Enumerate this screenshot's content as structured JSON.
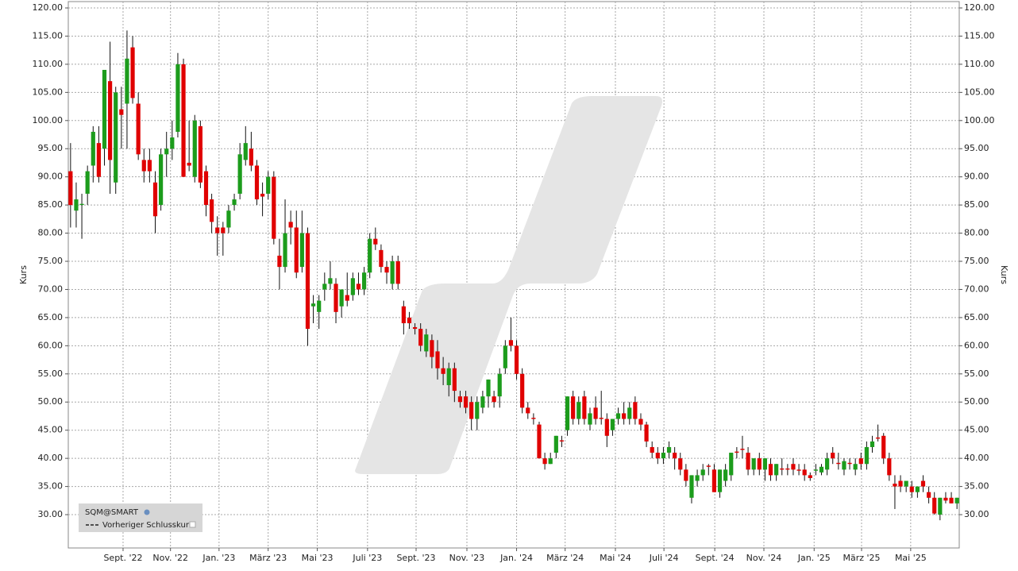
{
  "chart_data": {
    "type": "candlestick",
    "series": [
      {
        "name": "SQM@SMART",
        "up_color": "#1c9c1c",
        "down_color": "#e00000",
        "open": [
          91,
          84,
          85,
          87,
          92,
          96,
          95,
          107,
          89,
          102,
          103,
          113,
          103,
          93,
          93,
          89,
          85,
          94,
          95,
          98,
          110,
          92.5,
          90,
          99,
          91,
          86,
          81,
          81,
          81,
          85,
          87,
          93,
          95,
          92,
          87,
          87,
          90,
          76,
          74,
          82,
          81,
          74,
          80,
          67,
          66,
          70,
          71,
          71,
          67,
          69,
          69,
          71,
          70,
          73,
          79,
          77,
          74,
          71,
          75,
          67,
          65,
          63.3,
          63,
          59,
          61,
          59,
          56,
          53,
          56,
          51,
          51,
          50,
          47,
          49,
          51,
          51,
          51,
          56,
          61,
          60,
          55,
          49,
          47.2,
          46,
          40,
          39,
          41,
          43.2,
          45,
          51,
          47,
          51,
          46,
          49,
          47.2,
          47,
          45,
          47,
          48,
          47,
          50,
          47,
          46,
          42,
          41,
          40,
          41,
          41,
          40,
          38,
          33,
          36,
          37,
          38.7,
          38,
          34,
          36,
          37,
          41.2,
          41.7,
          41,
          38,
          40,
          38,
          39,
          37,
          38.2,
          38.2,
          39,
          38,
          38,
          37,
          37.8,
          37.5,
          38,
          41,
          39.2,
          38,
          39.2,
          38,
          40,
          39,
          42,
          43.7,
          44,
          40,
          35.5,
          36,
          35,
          35,
          34,
          36,
          34,
          33,
          30,
          33,
          33,
          32
        ],
        "high": [
          96,
          89,
          87,
          92,
          99,
          99,
          109,
          114,
          106,
          106,
          116,
          115,
          105,
          95,
          95,
          91,
          95,
          98,
          100,
          112,
          111,
          100,
          101,
          100,
          92,
          87,
          83,
          82,
          85,
          87,
          96,
          99,
          98,
          93,
          89,
          91,
          91,
          79,
          86,
          84,
          84,
          84,
          81,
          69,
          69,
          73,
          75,
          72,
          70,
          73,
          73,
          73,
          74,
          80,
          81,
          78,
          75,
          76,
          76,
          68,
          66,
          64,
          64,
          63,
          62,
          61,
          58,
          57,
          57,
          52,
          52,
          51,
          51,
          52,
          54,
          52,
          56,
          61,
          65,
          61,
          56,
          50,
          48,
          46.5,
          41,
          41,
          44,
          44,
          51,
          52,
          51,
          52,
          49,
          51,
          52,
          48,
          47,
          49,
          50,
          50,
          51,
          48,
          46.5,
          43,
          42,
          42,
          43,
          42,
          41,
          39,
          37,
          38,
          39,
          39,
          39,
          38,
          39,
          41,
          42,
          44,
          42,
          40,
          41,
          40,
          40,
          39,
          40,
          39,
          40,
          39,
          39,
          37.5,
          39,
          39,
          41,
          42,
          41,
          40,
          40,
          40,
          41,
          43,
          44,
          46,
          44.5,
          41,
          37,
          37,
          36,
          36,
          35,
          37,
          35,
          34,
          33,
          34,
          34,
          33
        ],
        "low": [
          81,
          81,
          79,
          85,
          89,
          89,
          92,
          87,
          87,
          95,
          95,
          103,
          93,
          89,
          89,
          80,
          84,
          90,
          93,
          97,
          90,
          91,
          89,
          88,
          83,
          80,
          76,
          76,
          80,
          84,
          86,
          92,
          91,
          85,
          83,
          86,
          78,
          70,
          73,
          78,
          72,
          73,
          60,
          64,
          63,
          68,
          70,
          64,
          65,
          67,
          68,
          69,
          69,
          72,
          77,
          73,
          71,
          70,
          70,
          62,
          63,
          62,
          59,
          58,
          56,
          54,
          53,
          51,
          50,
          49,
          48,
          45,
          45,
          48,
          49,
          49,
          49,
          55,
          59,
          54,
          48,
          47,
          46,
          40,
          38,
          39,
          40,
          42,
          44,
          46,
          46,
          46,
          45,
          46,
          46,
          42,
          44,
          46,
          46,
          46,
          46,
          45,
          42,
          40,
          39,
          39,
          40,
          38,
          37,
          35,
          32,
          35,
          36,
          37,
          34,
          33,
          35,
          36,
          40,
          40,
          37,
          37,
          37,
          36,
          36,
          36,
          37,
          37,
          37,
          37,
          36,
          36,
          37,
          37,
          37,
          39,
          38,
          37,
          38,
          37,
          38,
          38,
          41,
          43,
          39,
          36,
          31,
          34,
          34,
          33,
          33,
          34,
          32,
          30,
          29,
          32,
          32,
          31
        ],
        "close": [
          85,
          86,
          85.2,
          91,
          98,
          90,
          109,
          93,
          105,
          101,
          111,
          104,
          94,
          91,
          91,
          83,
          94,
          95,
          97,
          110,
          90,
          92,
          100,
          89,
          85,
          82,
          80,
          80,
          84,
          86,
          94,
          96,
          92,
          86,
          86.5,
          90,
          79,
          74,
          80,
          81,
          73,
          80,
          63,
          67.5,
          68,
          71,
          72,
          66,
          70,
          68,
          72,
          70,
          73,
          79,
          78,
          74,
          73,
          75,
          71,
          64,
          64,
          63,
          60,
          62,
          58,
          56,
          55,
          56,
          52,
          50,
          49,
          47,
          50,
          51,
          54,
          50,
          55,
          60,
          60,
          55,
          49,
          48,
          47,
          40,
          39,
          40,
          44,
          43,
          51,
          47,
          50,
          47,
          48,
          47,
          47,
          44,
          47,
          48,
          47,
          49,
          47,
          46,
          43,
          41,
          40,
          41,
          42,
          40,
          38,
          36,
          37,
          37,
          38,
          38.5,
          34,
          38,
          38,
          41,
          41,
          41.5,
          38,
          40,
          38,
          40,
          37,
          39,
          38,
          38,
          38,
          37.8,
          37,
          36.5,
          38,
          38.5,
          40,
          40,
          39,
          39.5,
          39,
          39,
          39,
          42,
          43,
          43.5,
          40,
          37,
          35,
          35,
          36,
          34,
          35,
          35,
          33,
          30.2,
          33,
          32.5,
          32,
          33
        ]
      },
      {
        "name": "Vorheriger Schlusskurs"
      }
    ],
    "ylabel": "Kurs",
    "y2label": "Kurs",
    "xlim": [
      -0.4,
      157.4
    ],
    "xticks": [
      {
        "value": 9.3,
        "label": "Sept. '22"
      },
      {
        "value": 17.7,
        "label": "Nov. '22"
      },
      {
        "value": 26.3,
        "label": "Jan. '23"
      },
      {
        "value": 35.0,
        "label": "März '23"
      },
      {
        "value": 43.7,
        "label": "Mai '23"
      },
      {
        "value": 52.6,
        "label": "Juli '23"
      },
      {
        "value": 61.2,
        "label": "Sept. '23"
      },
      {
        "value": 70.2,
        "label": "Nov. '23"
      },
      {
        "value": 79.0,
        "label": "Jan. '24"
      },
      {
        "value": 87.6,
        "label": "März '24"
      },
      {
        "value": 96.5,
        "label": "Mai '24"
      },
      {
        "value": 105.1,
        "label": "Juli '24"
      },
      {
        "value": 114.1,
        "label": "Sept. '24"
      },
      {
        "value": 122.8,
        "label": "Nov. '24"
      },
      {
        "value": 131.7,
        "label": "Jan. '25"
      },
      {
        "value": 140.1,
        "label": "März '25"
      },
      {
        "value": 148.8,
        "label": "Mai '25"
      }
    ],
    "ylim": [
      24.08,
      121.13
    ],
    "yticks": [
      {
        "value": 30,
        "label": "30.00"
      },
      {
        "value": 35,
        "label": "35.00"
      },
      {
        "value": 40,
        "label": "40.00"
      },
      {
        "value": 45,
        "label": "45.00"
      },
      {
        "value": 50,
        "label": "50.00"
      },
      {
        "value": 55,
        "label": "55.00"
      },
      {
        "value": 60,
        "label": "60.00"
      },
      {
        "value": 65,
        "label": "65.00"
      },
      {
        "value": 70,
        "label": "70.00"
      },
      {
        "value": 75,
        "label": "75.00"
      },
      {
        "value": 80,
        "label": "80.00"
      },
      {
        "value": 85,
        "label": "85.00"
      },
      {
        "value": 90,
        "label": "90.00"
      },
      {
        "value": 95,
        "label": "95.00"
      },
      {
        "value": 100,
        "label": "100.00"
      },
      {
        "value": 105,
        "label": "105.00"
      },
      {
        "value": 110,
        "label": "110.00"
      },
      {
        "value": 115,
        "label": "115.00"
      },
      {
        "value": 120,
        "label": "120.00"
      }
    ],
    "grid": true
  }
}
